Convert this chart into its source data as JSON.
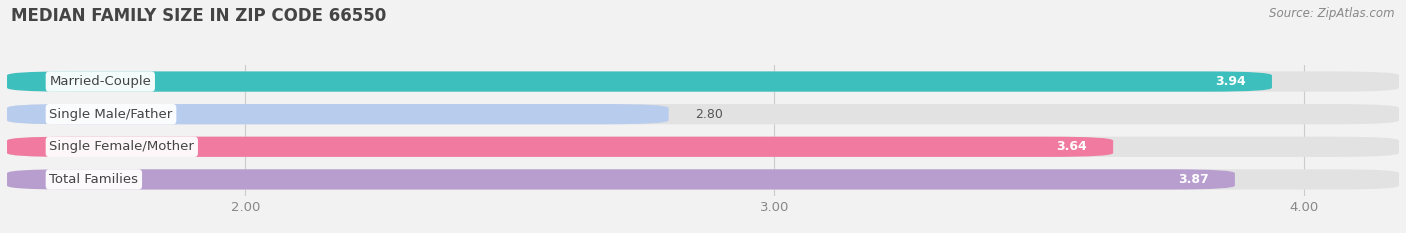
{
  "title": "MEDIAN FAMILY SIZE IN ZIP CODE 66550",
  "source": "Source: ZipAtlas.com",
  "categories": [
    "Married-Couple",
    "Single Male/Father",
    "Single Female/Mother",
    "Total Families"
  ],
  "values": [
    3.94,
    2.8,
    3.64,
    3.87
  ],
  "bar_colors": [
    "#3dbfbe",
    "#b8ccee",
    "#f07aa0",
    "#b89ecf"
  ],
  "bar_height": 0.62,
  "bar_gap": 0.38,
  "xlim_min": 1.55,
  "xlim_max": 4.18,
  "xstart": 1.55,
  "xticks": [
    2.0,
    3.0,
    4.0
  ],
  "xtick_labels": [
    "2.00",
    "3.00",
    "4.00"
  ],
  "background_color": "#f2f2f2",
  "bar_bg_color": "#e2e2e2",
  "title_fontsize": 12,
  "label_fontsize": 9.5,
  "value_fontsize": 9,
  "source_fontsize": 8.5,
  "title_color": "#444444",
  "label_color": "#444444",
  "tick_color": "#888888",
  "source_color": "#888888",
  "grid_color": "#cccccc"
}
